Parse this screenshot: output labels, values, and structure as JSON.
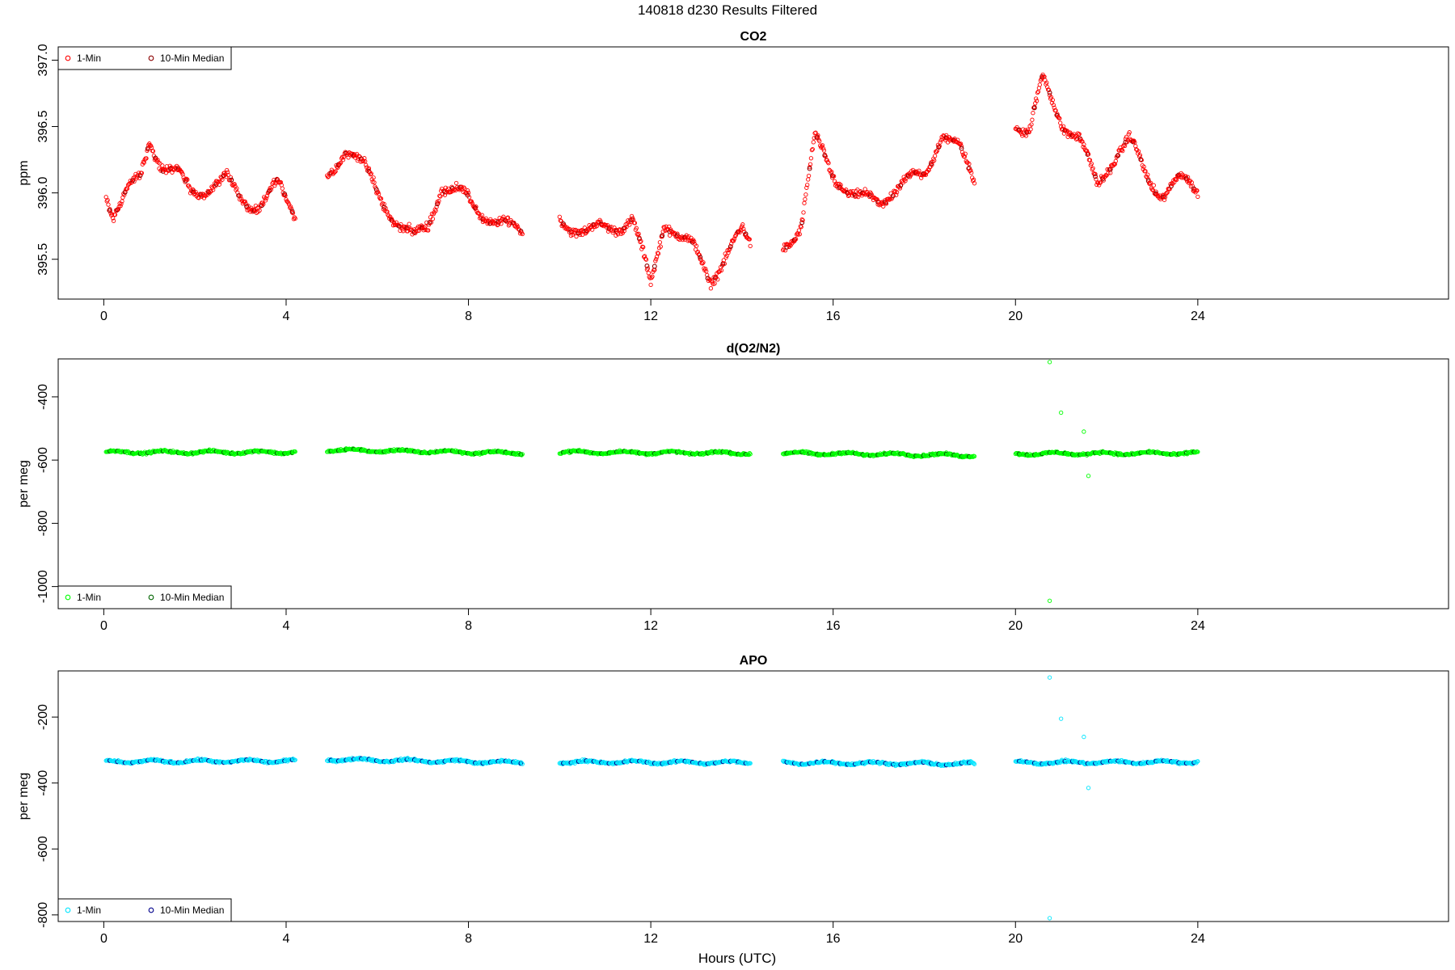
{
  "page_title": "140818    d230    Results Filtered",
  "xlabel": "Hours (UTC)",
  "colors": {
    "co2_1min": "#ff0000",
    "co2_median": "#8b0000",
    "o2_1min": "#00ff00",
    "o2_median": "#006400",
    "apo_1min": "#00e5ff",
    "apo_median": "#00008b"
  },
  "chart_data": [
    {
      "type": "scatter",
      "title": "CO2",
      "ylabel": "ppm",
      "xlim": [
        -1,
        29.5
      ],
      "ylim": [
        395.2,
        397.1
      ],
      "xticks": [
        "0",
        "4",
        "8",
        "12",
        "16",
        "20",
        "24"
      ],
      "yticks": [
        "395.5",
        "396.0",
        "396.5",
        "397.0"
      ],
      "legend": {
        "placement": "top-left",
        "entries": [
          "1-Min",
          "10-Min Median"
        ]
      },
      "segments": [
        {
          "start": 0.05,
          "end": 4.2,
          "knots": [
            [
              0.05,
              396.0
            ],
            [
              0.2,
              395.85
            ],
            [
              0.5,
              396.0
            ],
            [
              0.8,
              396.1
            ],
            [
              1.0,
              396.4
            ],
            [
              1.3,
              396.2
            ],
            [
              1.6,
              396.15
            ],
            [
              1.9,
              396.0
            ],
            [
              2.3,
              396.05
            ],
            [
              2.7,
              396.1
            ],
            [
              3.0,
              395.95
            ],
            [
              3.4,
              395.9
            ],
            [
              3.8,
              396.05
            ],
            [
              4.2,
              395.85
            ]
          ]
        },
        {
          "start": 4.9,
          "end": 9.2,
          "knots": [
            [
              4.9,
              396.1
            ],
            [
              5.3,
              396.35
            ],
            [
              5.6,
              396.25
            ],
            [
              6.0,
              396.0
            ],
            [
              6.4,
              395.8
            ],
            [
              6.8,
              395.65
            ],
            [
              7.1,
              395.75
            ],
            [
              7.4,
              396.05
            ],
            [
              7.8,
              396.0
            ],
            [
              8.3,
              395.85
            ],
            [
              8.8,
              395.75
            ],
            [
              9.2,
              395.7
            ]
          ]
        },
        {
          "start": 10.0,
          "end": 14.2,
          "knots": [
            [
              10.0,
              395.8
            ],
            [
              10.6,
              395.7
            ],
            [
              11.2,
              395.75
            ],
            [
              11.6,
              395.8
            ],
            [
              12.0,
              395.3
            ],
            [
              12.3,
              395.8
            ],
            [
              12.7,
              395.65
            ],
            [
              13.0,
              395.55
            ],
            [
              13.3,
              395.35
            ],
            [
              13.6,
              395.5
            ],
            [
              14.0,
              395.7
            ],
            [
              14.2,
              395.6
            ]
          ]
        },
        {
          "start": 14.9,
          "end": 19.1,
          "knots": [
            [
              14.9,
              395.6
            ],
            [
              15.3,
              395.75
            ],
            [
              15.6,
              396.4
            ],
            [
              16.0,
              396.15
            ],
            [
              16.5,
              395.95
            ],
            [
              17.0,
              395.95
            ],
            [
              17.5,
              396.05
            ],
            [
              18.0,
              396.15
            ],
            [
              18.4,
              396.45
            ],
            [
              18.8,
              396.3
            ],
            [
              19.1,
              396.1
            ]
          ]
        },
        {
          "start": 20.0,
          "end": 24.0,
          "knots": [
            [
              20.0,
              396.55
            ],
            [
              20.3,
              396.45
            ],
            [
              20.6,
              396.85
            ],
            [
              21.0,
              396.55
            ],
            [
              21.4,
              396.4
            ],
            [
              21.8,
              396.05
            ],
            [
              22.2,
              396.3
            ],
            [
              22.5,
              396.4
            ],
            [
              22.9,
              396.1
            ],
            [
              23.2,
              396.0
            ],
            [
              23.6,
              396.1
            ],
            [
              24.0,
              396.0
            ]
          ]
        }
      ]
    },
    {
      "type": "scatter",
      "title": "d(O2/N2)",
      "ylabel": "per meg",
      "xlim": [
        -1,
        29.5
      ],
      "ylim": [
        -1070,
        -280
      ],
      "xticks": [
        "0",
        "4",
        "8",
        "12",
        "16",
        "20",
        "24"
      ],
      "yticks": [
        "-1000",
        "-800",
        "-600",
        "-400"
      ],
      "legend": {
        "placement": "bottom-left",
        "entries": [
          "1-Min",
          "10-Min Median"
        ]
      },
      "segments": [
        {
          "start": 0.05,
          "end": 4.2,
          "knots": [
            [
              0.05,
              -575
            ],
            [
              4.2,
              -575
            ]
          ]
        },
        {
          "start": 4.9,
          "end": 9.2,
          "knots": [
            [
              4.9,
              -568
            ],
            [
              9.2,
              -578
            ]
          ]
        },
        {
          "start": 10.0,
          "end": 14.2,
          "knots": [
            [
              10.0,
              -575
            ],
            [
              14.2,
              -578
            ]
          ]
        },
        {
          "start": 14.9,
          "end": 19.1,
          "knots": [
            [
              14.9,
              -578
            ],
            [
              19.1,
              -585
            ]
          ]
        },
        {
          "start": 20.0,
          "end": 24.0,
          "knots": [
            [
              20.0,
              -580
            ],
            [
              24.0,
              -578
            ]
          ]
        }
      ],
      "outliers": [
        [
          20.75,
          -290
        ],
        [
          20.75,
          -1045
        ],
        [
          21.0,
          -450
        ],
        [
          21.6,
          -650
        ],
        [
          21.5,
          -510
        ]
      ]
    },
    {
      "type": "scatter",
      "title": "APO",
      "ylabel": "per meg",
      "xlim": [
        -1,
        29.5
      ],
      "ylim": [
        -820,
        -60
      ],
      "xticks": [
        "0",
        "4",
        "8",
        "12",
        "16",
        "20",
        "24"
      ],
      "yticks": [
        "-800",
        "-600",
        "-400",
        "-200"
      ],
      "legend": {
        "placement": "bottom-left",
        "entries": [
          "1-Min",
          "10-Min Median"
        ]
      },
      "segments": [
        {
          "start": 0.05,
          "end": 4.2,
          "knots": [
            [
              0.05,
              -335
            ],
            [
              4.2,
              -333
            ]
          ]
        },
        {
          "start": 4.9,
          "end": 9.2,
          "knots": [
            [
              4.9,
              -328
            ],
            [
              9.2,
              -338
            ]
          ]
        },
        {
          "start": 10.0,
          "end": 14.2,
          "knots": [
            [
              10.0,
              -336
            ],
            [
              14.2,
              -338
            ]
          ]
        },
        {
          "start": 14.9,
          "end": 19.1,
          "knots": [
            [
              14.9,
              -338
            ],
            [
              19.1,
              -342
            ]
          ]
        },
        {
          "start": 20.0,
          "end": 24.0,
          "knots": [
            [
              20.0,
              -338
            ],
            [
              24.0,
              -336
            ]
          ]
        }
      ],
      "outliers": [
        [
          20.75,
          -80
        ],
        [
          20.75,
          -810
        ],
        [
          21.0,
          -205
        ],
        [
          21.6,
          -415
        ],
        [
          21.5,
          -260
        ]
      ]
    }
  ]
}
